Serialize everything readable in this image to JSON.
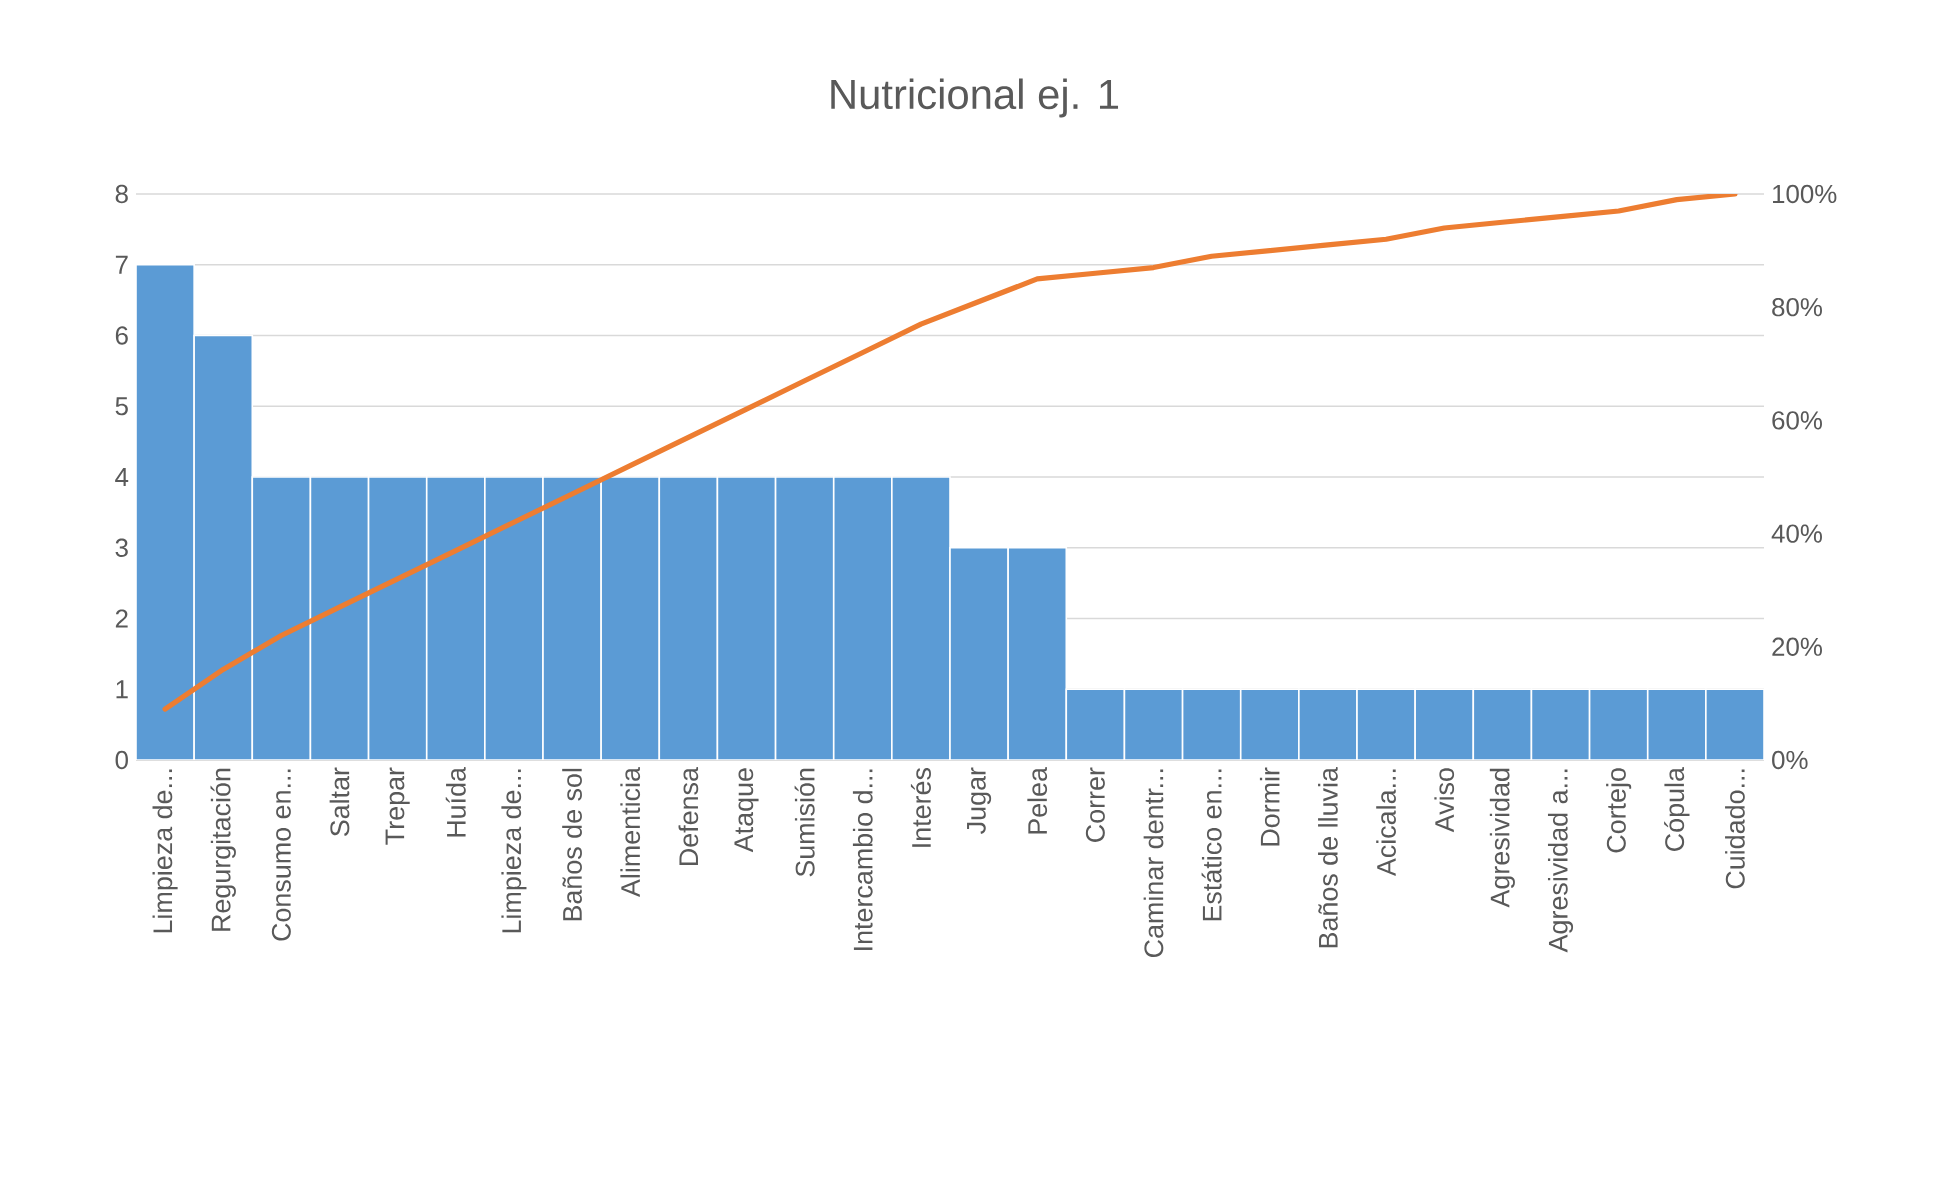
{
  "chart_data": {
    "type": "bar",
    "title": "Nutricional ej. 1",
    "categories": [
      "Limpieza de...",
      "Regurgitación",
      "Consumo en...",
      "Saltar",
      "Trepar",
      "Huída",
      "Limpieza de...",
      "Baños de sol",
      "Alimenticia",
      "Defensa",
      "Ataque",
      "Sumisión",
      "Intercambio d...",
      "Interés",
      "Jugar",
      "Pelea",
      "Correr",
      "Caminar dentr...",
      "Estático en...",
      "Dormir",
      "Baños de lluvia",
      "Acicala...",
      "Aviso",
      "Agresividad",
      "Agresividad a...",
      "Cortejo",
      "Cópula",
      "Cuidado..."
    ],
    "series": [
      {
        "color": "#5b9bd5",
        "values": [
          7,
          6,
          4,
          4,
          4,
          4,
          4,
          4,
          4,
          4,
          4,
          4,
          4,
          4,
          3,
          3,
          1,
          1,
          1,
          1,
          1,
          1,
          1,
          1,
          1,
          1,
          1,
          1
        ]
      },
      {
        "type": "line",
        "axis": "y2",
        "color": "#ed7d31",
        "values": [
          9,
          16,
          22,
          27,
          32,
          37,
          42,
          47,
          52,
          57,
          62,
          67,
          72,
          77,
          81,
          85,
          86,
          87,
          89,
          90,
          91,
          92,
          94,
          95,
          96,
          97,
          99,
          100
        ]
      }
    ],
    "ylim": [
      0,
      8
    ],
    "yticks": [
      0,
      1,
      2,
      3,
      4,
      5,
      6,
      7,
      8
    ],
    "y2lim": [
      0,
      100
    ],
    "y2ticks": [
      {
        "value": 0,
        "label": "0%"
      },
      {
        "value": 20,
        "label": "20%"
      },
      {
        "value": 40,
        "label": "40%"
      },
      {
        "value": 60,
        "label": "60%"
      },
      {
        "value": 80,
        "label": "80%"
      },
      {
        "value": 100,
        "label": "100%"
      }
    ],
    "grid": "y",
    "marker": "none",
    "line_style": "solid"
  }
}
